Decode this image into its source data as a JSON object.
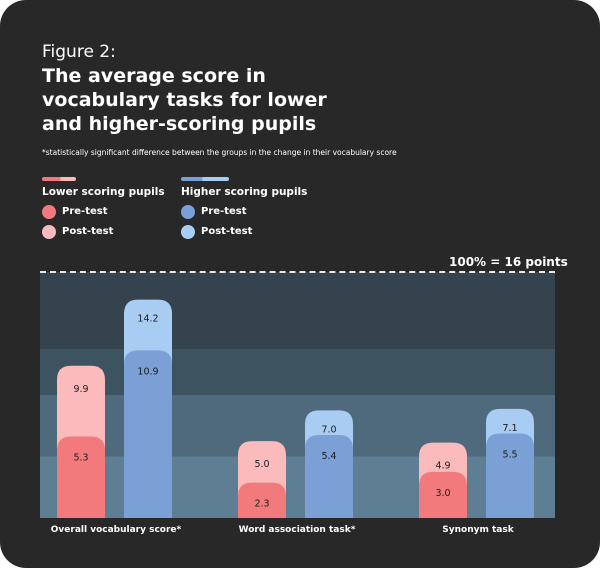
{
  "figure_label": "Figure 2:",
  "title": "The average score in vocabulary tasks for lower and higher-scoring pupils",
  "note": "*statistically significant difference between the groups in the change in their vocabulary score",
  "legend": {
    "lower": {
      "heading": "Lower scoring pupils",
      "pre": "Pre-test",
      "post": "Post-test"
    },
    "higher": {
      "heading": "Higher scoring pupils",
      "pre": "Pre-test",
      "post": "Post-test"
    }
  },
  "scale_label": "100% = 16 points",
  "colors": {
    "card_bg": "#282828",
    "lower_pre": "#f27a7c",
    "lower_post": "#fbbabb",
    "higher_pre": "#7aa0d6",
    "higher_post": "#a9cdf2",
    "band_colors": [
      "#34434d",
      "#3e5360",
      "#4f6a7c",
      "#5e7e94"
    ]
  },
  "chart_data": {
    "type": "bar",
    "categories": [
      "Overall vocabulary score*",
      "Word association task*",
      "Synonym task"
    ],
    "series": [
      {
        "name": "Lower scoring pupils Pre-test",
        "values": [
          5.3,
          2.3,
          3.0
        ]
      },
      {
        "name": "Lower scoring pupils Post-test",
        "values": [
          9.9,
          5.0,
          4.9
        ]
      },
      {
        "name": "Higher scoring pupils Pre-test",
        "values": [
          10.9,
          5.4,
          5.5
        ]
      },
      {
        "name": "Higher scoring pupils Post-test",
        "values": [
          14.2,
          7.0,
          7.1
        ]
      }
    ],
    "ylim": [
      0,
      16
    ],
    "data_labels": true,
    "legend_position": "top-left"
  }
}
